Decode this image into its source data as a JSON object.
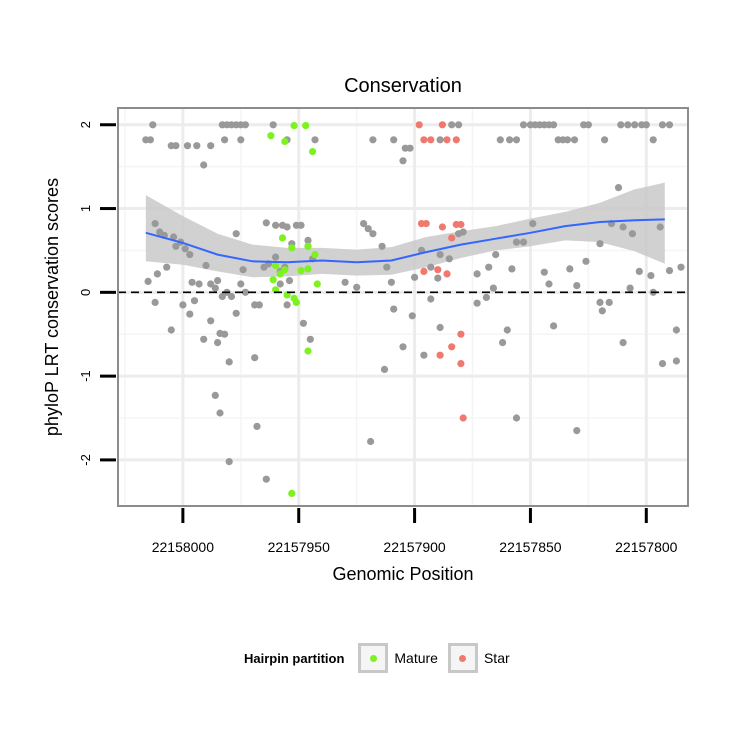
{
  "chart_data": {
    "type": "scatter",
    "title": "Conservation",
    "xlabel": "Genomic Position",
    "ylabel": "phyloP LRT conservation scores",
    "x_reversed": true,
    "xlim": [
      22158028,
      22157782
    ],
    "ylim": [
      -2.55,
      2.2
    ],
    "x_ticks": [
      22158000,
      22157950,
      22157900,
      22157850,
      22157800
    ],
    "x_tick_labels": [
      "22158000",
      "22157950",
      "22157900",
      "22157850",
      "22157800"
    ],
    "y_ticks": [
      -2,
      -1,
      0,
      1,
      2
    ],
    "y_tick_labels": [
      "-2",
      "-1",
      "0",
      "1",
      "2"
    ],
    "reference_line": {
      "y": 0,
      "style": "dashed"
    },
    "grid": true,
    "colors": {
      "Other": "#999999",
      "Mature": "#7cf21f",
      "Star": "#f0796f",
      "smooth": "#3366ff",
      "ribbon": "#c9c9c9",
      "panel_border": "#8c8c8c"
    },
    "legend": {
      "title": "Hairpin partition",
      "position": "bottom",
      "entries": [
        {
          "label": "Mature",
          "color": "#7cf21f"
        },
        {
          "label": "Star",
          "color": "#f0796f"
        }
      ]
    },
    "smooth": {
      "x": [
        22158016,
        22158000,
        22157985,
        22157970,
        22157955,
        22157940,
        22157925,
        22157910,
        22157895,
        22157880,
        22157865,
        22157850,
        22157835,
        22157820,
        22157805,
        22157792
      ],
      "y": [
        0.71,
        0.59,
        0.45,
        0.37,
        0.36,
        0.38,
        0.36,
        0.38,
        0.48,
        0.57,
        0.64,
        0.71,
        0.79,
        0.84,
        0.86,
        0.87
      ],
      "lower": [
        0.37,
        0.33,
        0.25,
        0.18,
        0.19,
        0.22,
        0.2,
        0.21,
        0.3,
        0.41,
        0.5,
        0.55,
        0.62,
        0.6,
        0.49,
        0.34
      ],
      "upper": [
        1.16,
        0.91,
        0.7,
        0.57,
        0.53,
        0.53,
        0.51,
        0.54,
        0.66,
        0.73,
        0.79,
        0.88,
        0.96,
        1.07,
        1.23,
        1.31
      ]
    },
    "series": [
      {
        "name": "Other",
        "points": [
          [
            22158016,
            1.82
          ],
          [
            22158014,
            1.82
          ],
          [
            22158013,
            2.0
          ],
          [
            22158005,
            1.75
          ],
          [
            22158003,
            1.75
          ],
          [
            22157998,
            1.75
          ],
          [
            22157994,
            1.75
          ],
          [
            22157991,
            1.52
          ],
          [
            22157988,
            1.75
          ],
          [
            22157983,
            2.0
          ],
          [
            22157981,
            2.0
          ],
          [
            22157979,
            2.0
          ],
          [
            22157977,
            2.0
          ],
          [
            22157975,
            2.0
          ],
          [
            22157973,
            2.0
          ],
          [
            22157982,
            1.82
          ],
          [
            22157975,
            1.82
          ],
          [
            22157961,
            2.0
          ],
          [
            22157955,
            1.82
          ],
          [
            22157943,
            1.82
          ],
          [
            22157918,
            1.82
          ],
          [
            22157909,
            1.82
          ],
          [
            22157904,
            1.72
          ],
          [
            22157902,
            1.72
          ],
          [
            22157905,
            1.57
          ],
          [
            22157889,
            1.82
          ],
          [
            22157884,
            2.0
          ],
          [
            22157881,
            2.0
          ],
          [
            22157863,
            1.82
          ],
          [
            22157859,
            1.82
          ],
          [
            22157856,
            1.82
          ],
          [
            22157853,
            2.0
          ],
          [
            22157850,
            2.0
          ],
          [
            22157848,
            2.0
          ],
          [
            22157846,
            2.0
          ],
          [
            22157844,
            2.0
          ],
          [
            22157842,
            2.0
          ],
          [
            22157840,
            2.0
          ],
          [
            22157838,
            1.82
          ],
          [
            22157836,
            1.82
          ],
          [
            22157834,
            1.82
          ],
          [
            22157831,
            1.82
          ],
          [
            22157827,
            2.0
          ],
          [
            22157825,
            2.0
          ],
          [
            22157818,
            1.82
          ],
          [
            22157811,
            2.0
          ],
          [
            22157808,
            2.0
          ],
          [
            22157805,
            2.0
          ],
          [
            22157802,
            2.0
          ],
          [
            22157800,
            2.0
          ],
          [
            22157797,
            1.82
          ],
          [
            22157793,
            2.0
          ],
          [
            22157790,
            2.0
          ],
          [
            22158012,
            0.82
          ],
          [
            22158010,
            0.72
          ],
          [
            22158008,
            0.68
          ],
          [
            22158004,
            0.66
          ],
          [
            22158001,
            0.6
          ],
          [
            22158003,
            0.55
          ],
          [
            22157999,
            0.52
          ],
          [
            22157997,
            0.45
          ],
          [
            22158015,
            0.13
          ],
          [
            22158011,
            0.22
          ],
          [
            22158007,
            0.3
          ],
          [
            22157990,
            0.32
          ],
          [
            22157993,
            0.1
          ],
          [
            22157996,
            0.12
          ],
          [
            22158012,
            -0.12
          ],
          [
            22157988,
            0.1
          ],
          [
            22157985,
            0.14
          ],
          [
            22157986,
            0.05
          ],
          [
            22157983,
            -0.05
          ],
          [
            22157981,
            0.0
          ],
          [
            22157979,
            -0.05
          ],
          [
            22157977,
            0.7
          ],
          [
            22157974,
            0.27
          ],
          [
            22157964,
            0.83
          ],
          [
            22157960,
            0.8
          ],
          [
            22157957,
            0.8
          ],
          [
            22157955,
            0.78
          ],
          [
            22157951,
            0.8
          ],
          [
            22157949,
            0.8
          ],
          [
            22157946,
            0.62
          ],
          [
            22157953,
            0.58
          ],
          [
            22157956,
            0.3
          ],
          [
            22157958,
            0.25
          ],
          [
            22157954,
            0.14
          ],
          [
            22157958,
            0.1
          ],
          [
            22157946,
            0.55
          ],
          [
            22157944,
            0.4
          ],
          [
            22157960,
            0.42
          ],
          [
            22157963,
            0.34
          ],
          [
            22157965,
            0.3
          ],
          [
            22157969,
            -0.15
          ],
          [
            22157967,
            -0.15
          ],
          [
            22157973,
            0.0
          ],
          [
            22157975,
            0.1
          ],
          [
            22157977,
            -0.25
          ],
          [
            22158000,
            -0.15
          ],
          [
            22157997,
            -0.26
          ],
          [
            22157995,
            -0.1
          ],
          [
            22158005,
            -0.45
          ],
          [
            22157991,
            -0.56
          ],
          [
            22157988,
            -0.34
          ],
          [
            22157984,
            -0.49
          ],
          [
            22157985,
            -0.6
          ],
          [
            22157982,
            -0.5
          ],
          [
            22157980,
            -0.83
          ],
          [
            22157986,
            -1.23
          ],
          [
            22157984,
            -1.44
          ],
          [
            22157980,
            -2.02
          ],
          [
            22157969,
            -0.78
          ],
          [
            22157968,
            -1.6
          ],
          [
            22157964,
            -2.23
          ],
          [
            22157955,
            -0.15
          ],
          [
            22157948,
            -0.37
          ],
          [
            22157945,
            -0.56
          ],
          [
            22157930,
            0.12
          ],
          [
            22157925,
            0.06
          ],
          [
            22157922,
            0.82
          ],
          [
            22157920,
            0.76
          ],
          [
            22157918,
            0.7
          ],
          [
            22157914,
            0.55
          ],
          [
            22157912,
            0.3
          ],
          [
            22157910,
            0.12
          ],
          [
            22157909,
            -0.2
          ],
          [
            22157901,
            -0.28
          ],
          [
            22157900,
            0.18
          ],
          [
            22157897,
            0.5
          ],
          [
            22157893,
            0.3
          ],
          [
            22157890,
            0.17
          ],
          [
            22157893,
            -0.08
          ],
          [
            22157889,
            -0.42
          ],
          [
            22157896,
            -0.75
          ],
          [
            22157905,
            -0.65
          ],
          [
            22157913,
            -0.92
          ],
          [
            22157919,
            -1.78
          ],
          [
            22157881,
            0.7
          ],
          [
            22157879,
            0.72
          ],
          [
            22157873,
            0.22
          ],
          [
            22157868,
            0.3
          ],
          [
            22157865,
            0.45
          ],
          [
            22157873,
            -0.13
          ],
          [
            22157869,
            -0.06
          ],
          [
            22157866,
            0.05
          ],
          [
            22157858,
            0.28
          ],
          [
            22157856,
            0.6
          ],
          [
            22157853,
            0.6
          ],
          [
            22157860,
            -0.45
          ],
          [
            22157862,
            -0.6
          ],
          [
            22157856,
            -1.5
          ],
          [
            22157849,
            0.82
          ],
          [
            22157844,
            0.24
          ],
          [
            22157842,
            0.1
          ],
          [
            22157840,
            -0.4
          ],
          [
            22157833,
            0.28
          ],
          [
            22157830,
            0.08
          ],
          [
            22157826,
            0.37
          ],
          [
            22157820,
            -0.12
          ],
          [
            22157819,
            -0.22
          ],
          [
            22157816,
            -0.12
          ],
          [
            22157812,
            1.25
          ],
          [
            22157810,
            0.78
          ],
          [
            22157806,
            0.7
          ],
          [
            22157810,
            -0.6
          ],
          [
            22157803,
            0.25
          ],
          [
            22157798,
            0.2
          ],
          [
            22157794,
            0.78
          ],
          [
            22157790,
            0.26
          ],
          [
            22157785,
            0.3
          ],
          [
            22157793,
            -0.85
          ],
          [
            22157787,
            -0.45
          ],
          [
            22157787,
            -0.82
          ],
          [
            22157797,
            0.0
          ],
          [
            22157807,
            0.05
          ],
          [
            22157830,
            -1.65
          ],
          [
            22157820,
            0.58
          ],
          [
            22157815,
            0.82
          ],
          [
            22157889,
            0.45
          ],
          [
            22157885,
            0.4
          ]
        ]
      },
      {
        "name": "Mature",
        "points": [
          [
            22157962,
            1.87
          ],
          [
            22157956,
            1.8
          ],
          [
            22157952,
            1.99
          ],
          [
            22157947,
            1.99
          ],
          [
            22157944,
            1.68
          ],
          [
            22157957,
            0.65
          ],
          [
            22157953,
            0.53
          ],
          [
            22157946,
            0.55
          ],
          [
            22157943,
            0.45
          ],
          [
            22157960,
            0.32
          ],
          [
            22157958,
            0.22
          ],
          [
            22157956,
            0.27
          ],
          [
            22157949,
            0.26
          ],
          [
            22157946,
            0.28
          ],
          [
            22157961,
            0.15
          ],
          [
            22157960,
            0.03
          ],
          [
            22157955,
            -0.03
          ],
          [
            22157952,
            -0.07
          ],
          [
            22157951,
            -0.12
          ],
          [
            22157942,
            0.1
          ],
          [
            22157946,
            -0.7
          ],
          [
            22157953,
            -2.4
          ]
        ]
      },
      {
        "name": "Star",
        "points": [
          [
            22157897,
            0.82
          ],
          [
            22157895,
            0.82
          ],
          [
            22157888,
            0.78
          ],
          [
            22157882,
            0.81
          ],
          [
            22157880,
            0.81
          ],
          [
            22157884,
            0.65
          ],
          [
            22157898,
            2.0
          ],
          [
            22157888,
            2.0
          ],
          [
            22157896,
            1.82
          ],
          [
            22157893,
            1.82
          ],
          [
            22157886,
            1.82
          ],
          [
            22157882,
            1.82
          ],
          [
            22157896,
            0.25
          ],
          [
            22157890,
            0.27
          ],
          [
            22157886,
            0.22
          ],
          [
            22157880,
            -0.5
          ],
          [
            22157884,
            -0.65
          ],
          [
            22157889,
            -0.75
          ],
          [
            22157880,
            -0.85
          ],
          [
            22157879,
            -1.5
          ]
        ]
      }
    ]
  }
}
